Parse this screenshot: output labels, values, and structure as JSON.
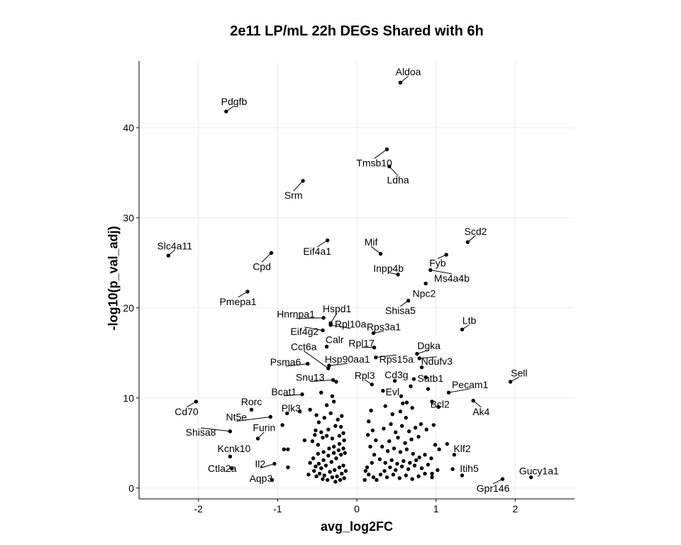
{
  "chart_data": {
    "type": "scatter",
    "title": "2e11 LP/mL 22h DEGs Shared with 6h",
    "xlabel": "avg_log2FC",
    "ylabel": "-log10(p_val_adj)",
    "xlim": [
      -2.75,
      2.75
    ],
    "ylim": [
      -1.2,
      47.4
    ],
    "xticks": [
      -2,
      -1,
      0,
      1,
      2
    ],
    "yticks": [
      0,
      10,
      20,
      30,
      40
    ],
    "grid": true,
    "legend": "none",
    "point_color": "#000000",
    "labeled_points": [
      {
        "label": "Aldoa",
        "x": 0.55,
        "y": 45.0,
        "lx": 0.65,
        "ly": 46.2
      },
      {
        "label": "Pdgfb",
        "x": -1.65,
        "y": 41.8,
        "lx": -1.55,
        "ly": 42.9
      },
      {
        "label": "Tmsb10",
        "x": 0.38,
        "y": 37.6,
        "lx": 0.22,
        "ly": 36.1
      },
      {
        "label": "Ldha",
        "x": 0.41,
        "y": 35.7,
        "lx": 0.52,
        "ly": 34.2
      },
      {
        "label": "Srm",
        "x": -0.68,
        "y": 34.1,
        "lx": -0.8,
        "ly": 32.5
      },
      {
        "label": "Scd2",
        "x": 1.4,
        "y": 27.3,
        "lx": 1.5,
        "ly": 28.5
      },
      {
        "label": "Eif4a1",
        "x": -0.37,
        "y": 27.5,
        "lx": -0.5,
        "ly": 26.3
      },
      {
        "label": "Mif",
        "x": 0.3,
        "y": 26.0,
        "lx": 0.18,
        "ly": 27.3
      },
      {
        "label": "Slc4a11",
        "x": -2.38,
        "y": 25.8,
        "lx": -2.3,
        "ly": 26.9
      },
      {
        "label": "Cpd",
        "x": -1.08,
        "y": 26.1,
        "lx": -1.2,
        "ly": 24.6
      },
      {
        "label": "Inpp4b",
        "x": 0.52,
        "y": 23.7,
        "lx": 0.4,
        "ly": 24.4
      },
      {
        "label": "Fyb",
        "x": 1.13,
        "y": 25.9,
        "lx": 1.02,
        "ly": 25.0
      },
      {
        "label": "Ms4a4b",
        "x": 0.93,
        "y": 24.2,
        "lx": 1.2,
        "ly": 23.3
      },
      {
        "label": "Npc2",
        "x": 0.87,
        "y": 22.7,
        "lx": 0.85,
        "ly": 21.6
      },
      {
        "label": "Pmepa1",
        "x": -1.38,
        "y": 21.8,
        "lx": -1.5,
        "ly": 20.7
      },
      {
        "label": "Shisa5",
        "x": 0.65,
        "y": 20.8,
        "lx": 0.55,
        "ly": 19.7
      },
      {
        "label": "Hspd1",
        "x": -0.33,
        "y": 18.3,
        "lx": -0.25,
        "ly": 19.9
      },
      {
        "label": "Hnrnpa1",
        "x": -0.42,
        "y": 18.9,
        "lx": -0.77,
        "ly": 19.3
      },
      {
        "label": "Rpl10a",
        "x": -0.33,
        "y": 18.1,
        "lx": -0.08,
        "ly": 18.2
      },
      {
        "label": "Rps3a1",
        "x": 0.21,
        "y": 17.2,
        "lx": 0.34,
        "ly": 17.9
      },
      {
        "label": "Ltb",
        "x": 1.33,
        "y": 17.6,
        "lx": 1.42,
        "ly": 18.6
      },
      {
        "label": "Eif4g2",
        "x": -0.43,
        "y": 17.5,
        "lx": -0.66,
        "ly": 17.4
      },
      {
        "label": "Calr",
        "x": -0.38,
        "y": 15.7,
        "lx": -0.28,
        "ly": 16.5
      },
      {
        "label": "Rpl17",
        "x": 0.22,
        "y": 15.6,
        "lx": 0.06,
        "ly": 16.1
      },
      {
        "label": "Cct6a",
        "x": -0.36,
        "y": 13.3,
        "lx": -0.67,
        "ly": 15.7
      },
      {
        "label": "Dgka",
        "x": 0.76,
        "y": 14.9,
        "lx": 0.91,
        "ly": 15.8
      },
      {
        "label": "Hsp90aa1",
        "x": -0.35,
        "y": 13.6,
        "lx": -0.12,
        "ly": 14.3
      },
      {
        "label": "Rps15a",
        "x": 0.24,
        "y": 14.5,
        "lx": 0.5,
        "ly": 14.3
      },
      {
        "label": "Ndufv3",
        "x": 0.79,
        "y": 14.4,
        "lx": 1.01,
        "ly": 14.1
      },
      {
        "label": "Psma6",
        "x": -0.62,
        "y": 13.8,
        "lx": -0.9,
        "ly": 14.0
      },
      {
        "label": "Rpl3",
        "x": 0.19,
        "y": 11.5,
        "lx": 0.1,
        "ly": 12.5
      },
      {
        "label": "Cd3g",
        "x": 0.48,
        "y": 11.9,
        "lx": 0.5,
        "ly": 12.6
      },
      {
        "label": "Satb1",
        "x": 0.87,
        "y": 12.3,
        "lx": 0.93,
        "ly": 12.2
      },
      {
        "label": "Snu13",
        "x": -0.3,
        "y": 12.0,
        "lx": -0.59,
        "ly": 12.3
      },
      {
        "label": "Sell",
        "x": 1.94,
        "y": 11.8,
        "lx": 2.05,
        "ly": 12.8
      },
      {
        "label": "Pecam1",
        "x": 1.16,
        "y": 10.6,
        "lx": 1.43,
        "ly": 11.5
      },
      {
        "label": "Bcat1",
        "x": -0.69,
        "y": 10.4,
        "lx": -0.92,
        "ly": 10.7
      },
      {
        "label": "Evl",
        "x": 0.33,
        "y": 10.8,
        "lx": 0.45,
        "ly": 10.7
      },
      {
        "label": "Cd70",
        "x": -2.03,
        "y": 9.6,
        "lx": -2.15,
        "ly": 8.5
      },
      {
        "label": "Rorc",
        "x": -1.33,
        "y": 8.7,
        "lx": -1.33,
        "ly": 9.6
      },
      {
        "label": "Bcl2",
        "x": 0.95,
        "y": 9.6,
        "lx": 1.05,
        "ly": 9.3
      },
      {
        "label": "Ak4",
        "x": 1.47,
        "y": 9.7,
        "lx": 1.57,
        "ly": 8.5
      },
      {
        "label": "Plk3",
        "x": -0.88,
        "y": 8.3,
        "lx": -0.83,
        "ly": 8.9
      },
      {
        "label": "Nt5e",
        "x": -1.09,
        "y": 7.9,
        "lx": -1.52,
        "ly": 7.9
      },
      {
        "label": "Furin",
        "x": -1.25,
        "y": 5.5,
        "lx": -1.17,
        "ly": 6.7
      },
      {
        "label": "Shisa8",
        "x": -1.6,
        "y": 6.3,
        "lx": -1.97,
        "ly": 6.2
      },
      {
        "label": "Kcnk10",
        "x": -1.6,
        "y": 3.5,
        "lx": -1.55,
        "ly": 4.4
      },
      {
        "label": "Klf2",
        "x": 1.23,
        "y": 3.7,
        "lx": 1.33,
        "ly": 4.4
      },
      {
        "label": "Il2",
        "x": -1.04,
        "y": 2.7,
        "lx": -1.22,
        "ly": 2.7
      },
      {
        "label": "Ctla2a",
        "x": -1.58,
        "y": 2.2,
        "lx": -1.7,
        "ly": 2.2
      },
      {
        "label": "Itih5",
        "x": 1.33,
        "y": 1.4,
        "lx": 1.42,
        "ly": 2.2
      },
      {
        "label": "Aqp3",
        "x": -1.07,
        "y": 0.9,
        "lx": -1.21,
        "ly": 1.1
      },
      {
        "label": "Gucy1a1",
        "x": 2.2,
        "y": 1.2,
        "lx": 2.3,
        "ly": 1.9
      },
      {
        "label": "Gpr146",
        "x": 1.84,
        "y": 1.0,
        "lx": 1.72,
        "ly": 0.0
      }
    ],
    "unlabeled_points": [
      [
        -0.45,
        10.6
      ],
      [
        -0.38,
        9.2
      ],
      [
        -0.31,
        10.2
      ],
      [
        -0.26,
        11.8
      ],
      [
        -0.29,
        9.6
      ],
      [
        -0.59,
        8.7
      ],
      [
        -0.51,
        8.1
      ],
      [
        -0.48,
        7.3
      ],
      [
        -0.41,
        7.8
      ],
      [
        -0.33,
        8.3
      ],
      [
        -0.24,
        7.6
      ],
      [
        -0.19,
        8.0
      ],
      [
        -0.2,
        6.8
      ],
      [
        -0.27,
        6.9
      ],
      [
        -0.36,
        6.5
      ],
      [
        -0.45,
        6.2
      ],
      [
        -0.53,
        5.9
      ],
      [
        -0.56,
        5.2
      ],
      [
        -0.49,
        4.8
      ],
      [
        -0.43,
        5.6
      ],
      [
        -0.38,
        5.8
      ],
      [
        -0.31,
        5.5
      ],
      [
        -0.22,
        5.8
      ],
      [
        -0.17,
        6.1
      ],
      [
        -0.16,
        5.3
      ],
      [
        -0.22,
        4.9
      ],
      [
        -0.29,
        4.6
      ],
      [
        -0.35,
        4.4
      ],
      [
        -0.42,
        4.0
      ],
      [
        -0.49,
        3.8
      ],
      [
        -0.55,
        3.3
      ],
      [
        -0.59,
        2.8
      ],
      [
        -0.52,
        2.4
      ],
      [
        -0.45,
        2.2
      ],
      [
        -0.39,
        2.5
      ],
      [
        -0.32,
        2.9
      ],
      [
        -0.26,
        3.3
      ],
      [
        -0.2,
        3.7
      ],
      [
        -0.15,
        3.9
      ],
      [
        -0.17,
        4.4
      ],
      [
        -0.23,
        4.2
      ],
      [
        -0.29,
        3.9
      ],
      [
        -0.36,
        3.6
      ],
      [
        -0.42,
        3.1
      ],
      [
        -0.48,
        2.7
      ],
      [
        -0.54,
        1.9
      ],
      [
        -0.47,
        1.6
      ],
      [
        -0.41,
        1.4
      ],
      [
        -0.34,
        1.8
      ],
      [
        -0.28,
        2.0
      ],
      [
        -0.22,
        2.3
      ],
      [
        -0.17,
        2.5
      ],
      [
        -0.14,
        1.9
      ],
      [
        -0.19,
        1.6
      ],
      [
        -0.25,
        1.3
      ],
      [
        -0.31,
        1.2
      ],
      [
        -0.37,
        0.9
      ],
      [
        -0.43,
        1.0
      ],
      [
        -0.51,
        1.3
      ],
      [
        -0.21,
        0.9
      ],
      [
        -0.27,
        0.7
      ],
      [
        -0.16,
        1.1
      ],
      [
        -0.61,
        1.5
      ],
      [
        -0.66,
        5.3
      ],
      [
        -0.52,
        6.4
      ],
      [
        -0.87,
        4.3
      ],
      [
        -0.92,
        4.3
      ],
      [
        -0.87,
        2.3
      ],
      [
        -0.94,
        7.0
      ],
      [
        -0.72,
        8.5
      ],
      [
        0.18,
        8.6
      ],
      [
        0.15,
        7.4
      ],
      [
        0.2,
        6.4
      ],
      [
        0.14,
        5.9
      ],
      [
        0.24,
        5.3
      ],
      [
        0.17,
        4.6
      ],
      [
        0.22,
        3.7
      ],
      [
        0.19,
        2.8
      ],
      [
        0.13,
        2.3
      ],
      [
        0.11,
        1.9
      ],
      [
        0.15,
        1.5
      ],
      [
        0.21,
        1.2
      ],
      [
        0.25,
        0.9
      ],
      [
        0.1,
        0.9
      ],
      [
        0.36,
        9.1
      ],
      [
        0.45,
        8.2
      ],
      [
        0.55,
        8.5
      ],
      [
        0.62,
        7.8
      ],
      [
        0.7,
        8.9
      ],
      [
        0.58,
        9.4
      ],
      [
        0.43,
        7.1
      ],
      [
        0.34,
        6.6
      ],
      [
        0.49,
        6.2
      ],
      [
        0.57,
        6.9
      ],
      [
        0.66,
        6.3
      ],
      [
        0.74,
        6.7
      ],
      [
        0.81,
        7.1
      ],
      [
        0.88,
        6.5
      ],
      [
        0.78,
        5.7
      ],
      [
        0.69,
        5.4
      ],
      [
        0.61,
        5.0
      ],
      [
        0.52,
        5.6
      ],
      [
        0.41,
        5.2
      ],
      [
        0.32,
        4.6
      ],
      [
        0.39,
        4.1
      ],
      [
        0.47,
        4.4
      ],
      [
        0.55,
        4.0
      ],
      [
        0.63,
        4.3
      ],
      [
        0.71,
        3.8
      ],
      [
        0.79,
        3.4
      ],
      [
        0.86,
        3.7
      ],
      [
        0.94,
        3.3
      ],
      [
        0.9,
        2.6
      ],
      [
        0.82,
        2.2
      ],
      [
        0.73,
        2.5
      ],
      [
        0.65,
        2.1
      ],
      [
        0.57,
        2.4
      ],
      [
        0.49,
        2.0
      ],
      [
        0.42,
        2.3
      ],
      [
        0.35,
        1.9
      ],
      [
        0.3,
        1.5
      ],
      [
        0.38,
        1.2
      ],
      [
        0.46,
        1.5
      ],
      [
        0.54,
        1.1
      ],
      [
        0.62,
        1.4
      ],
      [
        0.7,
        1.0
      ],
      [
        0.78,
        1.3
      ],
      [
        0.86,
        1.6
      ],
      [
        0.95,
        1.2
      ],
      [
        0.29,
        3.2
      ],
      [
        0.36,
        2.8
      ],
      [
        0.44,
        3.1
      ],
      [
        0.51,
        2.7
      ],
      [
        0.59,
        3.0
      ],
      [
        0.67,
        2.8
      ],
      [
        0.75,
        3.1
      ],
      [
        0.99,
        4.8
      ],
      [
        1.04,
        4.3
      ],
      [
        1.14,
        4.9
      ],
      [
        1.21,
        2.1
      ],
      [
        1.02,
        2.0
      ],
      [
        0.95,
        1.6
      ],
      [
        0.68,
        11.3
      ],
      [
        0.72,
        12.1
      ],
      [
        0.82,
        13.4
      ],
      [
        0.9,
        11.0
      ],
      [
        0.97,
        7.0
      ],
      [
        1.03,
        9.0
      ],
      [
        0.56,
        10.2
      ],
      [
        0.63,
        9.5
      ]
    ]
  }
}
